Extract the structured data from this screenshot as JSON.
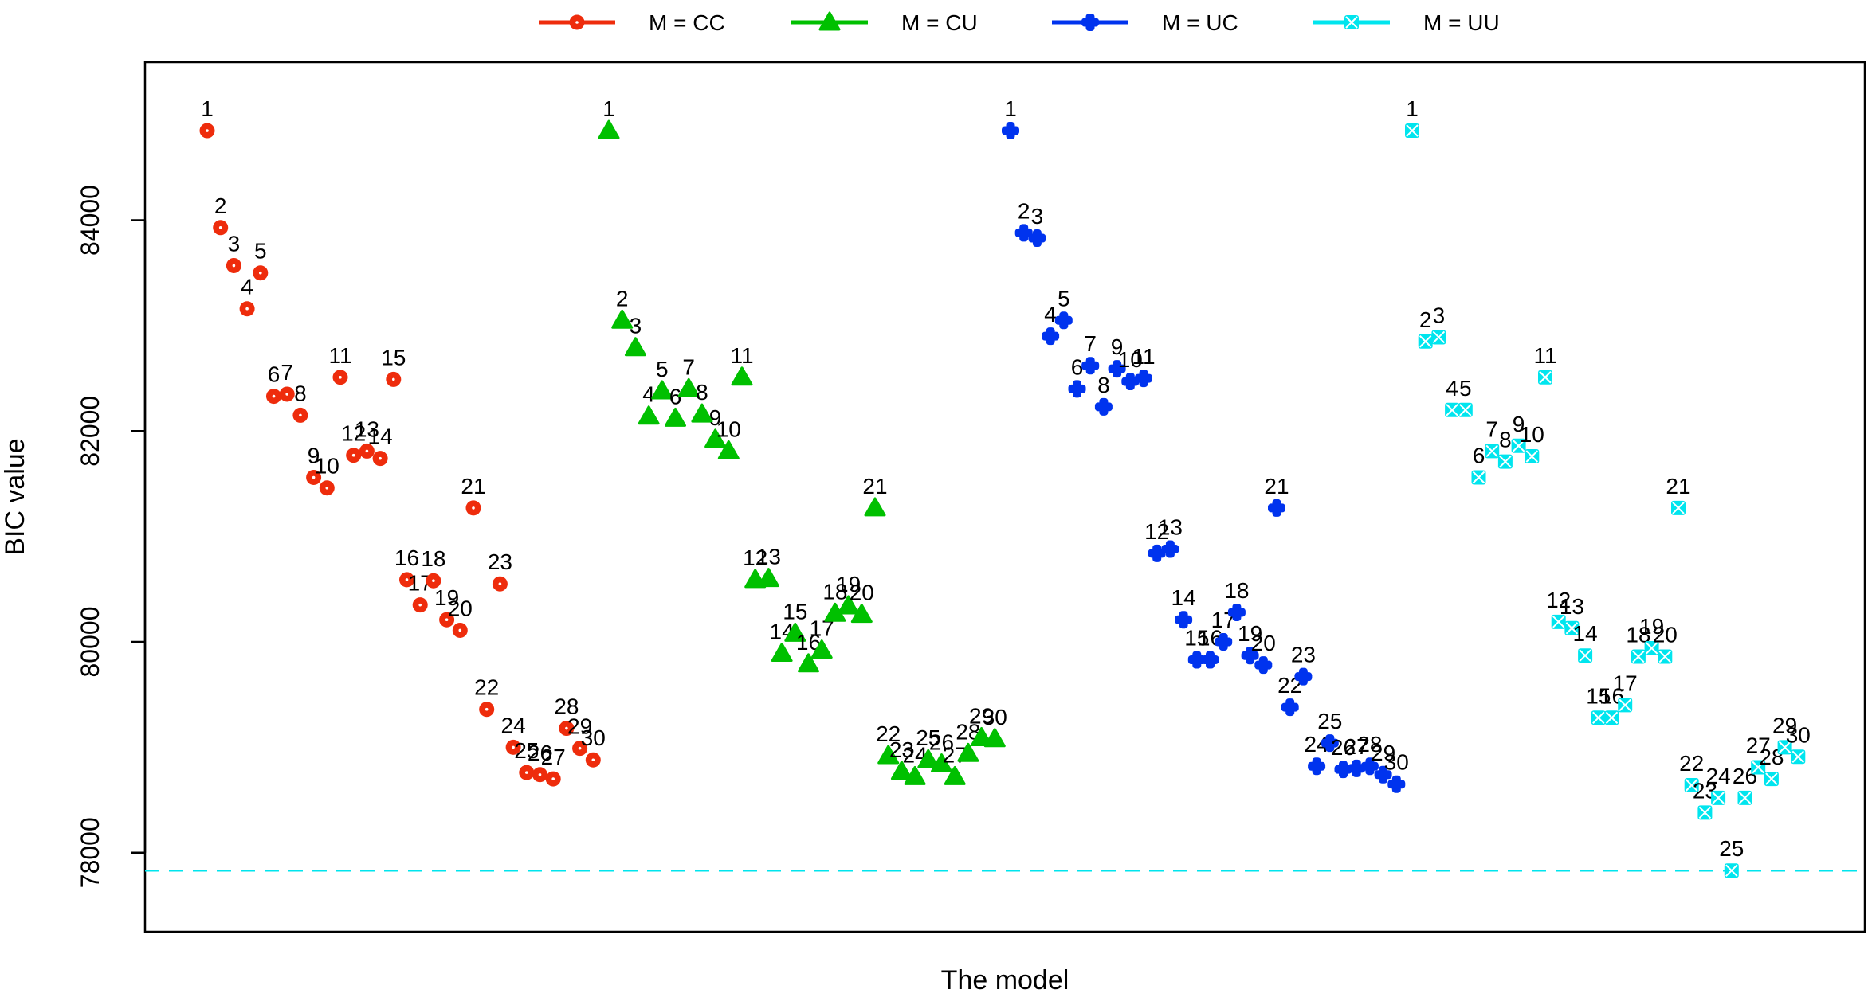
{
  "chart_data": {
    "type": "scatter",
    "xlabel": "The model",
    "ylabel": "BIC value",
    "ylim": [
      77250,
      85500
    ],
    "yticks": [
      78000,
      80000,
      82000,
      84000
    ],
    "point_labels": [
      "1",
      "2",
      "3",
      "4",
      "5",
      "6",
      "7",
      "8",
      "9",
      "10",
      "11",
      "12",
      "13",
      "14",
      "15",
      "16",
      "17",
      "18",
      "19",
      "20",
      "21",
      "22",
      "23",
      "24",
      "25",
      "26",
      "27",
      "28",
      "29",
      "30"
    ],
    "reference_line": {
      "value": 77830,
      "style": "dashed",
      "color": "#00E5EE"
    },
    "legend": {
      "placement": "top",
      "entries": [
        "M = CC",
        "M = CU",
        "M = UC",
        "M = UU"
      ]
    },
    "series": [
      {
        "name": "M = CC",
        "color": "#EE2C0C",
        "marker": "circle",
        "values": [
          84850,
          83930,
          83570,
          83160,
          83500,
          82330,
          82350,
          82150,
          81560,
          81460,
          82510,
          81770,
          81810,
          81740,
          82490,
          80590,
          80350,
          80580,
          80210,
          80110,
          81270,
          79360,
          80550,
          79000,
          78760,
          78740,
          78700,
          79180,
          78990,
          78880
        ]
      },
      {
        "name": "M = CU",
        "color": "#00C000",
        "marker": "triangle",
        "values": [
          84850,
          83050,
          82790,
          82140,
          82380,
          82120,
          82400,
          82160,
          81920,
          81810,
          82510,
          80590,
          80600,
          79890,
          80080,
          79790,
          79920,
          80270,
          80340,
          80260,
          81270,
          78920,
          78770,
          78720,
          78880,
          78840,
          78720,
          78940,
          79090,
          79080
        ]
      },
      {
        "name": "M = UC",
        "color": "#0033EE",
        "marker": "plus",
        "values": [
          84850,
          83880,
          83830,
          82900,
          83050,
          82400,
          82620,
          82230,
          82590,
          82470,
          82500,
          80840,
          80880,
          80210,
          79830,
          79830,
          80000,
          80280,
          79870,
          79780,
          81270,
          79380,
          79670,
          78820,
          79040,
          78790,
          78800,
          78820,
          78740,
          78650
        ]
      },
      {
        "name": "M = UU",
        "color": "#00E5EE",
        "marker": "cross",
        "values": [
          84850,
          82850,
          82890,
          82200,
          82200,
          81560,
          81810,
          81710,
          81860,
          81760,
          82510,
          80190,
          80130,
          79870,
          79280,
          79280,
          79400,
          79860,
          79940,
          79860,
          81270,
          78640,
          78380,
          78520,
          77830,
          78520,
          78810,
          78700,
          79000,
          78910
        ]
      }
    ]
  }
}
